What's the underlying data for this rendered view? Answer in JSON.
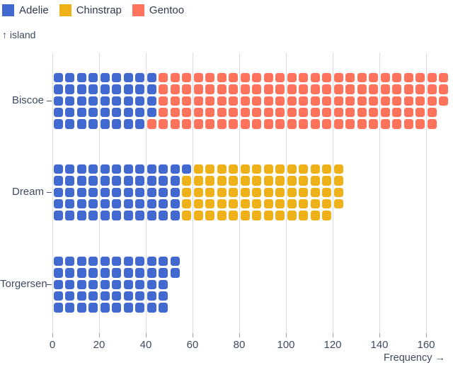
{
  "legend": {
    "items": [
      {
        "label": "Adelie",
        "color": "#4269d0"
      },
      {
        "label": "Chinstrap",
        "color": "#efb118"
      },
      {
        "label": "Gentoo",
        "color": "#ff725c"
      }
    ]
  },
  "axes": {
    "y_axis_label": "↑ island",
    "x_axis_label": "Frequency →"
  },
  "chart_data": {
    "type": "bar",
    "subtype": "waffle-horizontal-stacked",
    "title": "",
    "xlabel": "Frequency",
    "ylabel": "island",
    "unit_per_cell": 1,
    "cells_per_column": 5,
    "categories": [
      "Biscoe",
      "Dream",
      "Torgersen"
    ],
    "series": [
      {
        "name": "Adelie",
        "color": "#4269d0",
        "values": [
          44,
          56,
          52
        ]
      },
      {
        "name": "Chinstrap",
        "color": "#efb118",
        "values": [
          0,
          68,
          0
        ]
      },
      {
        "name": "Gentoo",
        "color": "#ff725c",
        "values": [
          124,
          0,
          0
        ]
      }
    ],
    "category_totals": [
      168,
      124,
      52
    ],
    "x_ticks": [
      0,
      20,
      40,
      60,
      80,
      100,
      120,
      140,
      160
    ],
    "x_domain": [
      0,
      170
    ],
    "grid": true,
    "legend_position": "top-left"
  },
  "colors": {
    "background": "#ffffff",
    "text": "#3e4a5f",
    "gridline": "#d9dce2",
    "tick": "#9aa2af"
  }
}
